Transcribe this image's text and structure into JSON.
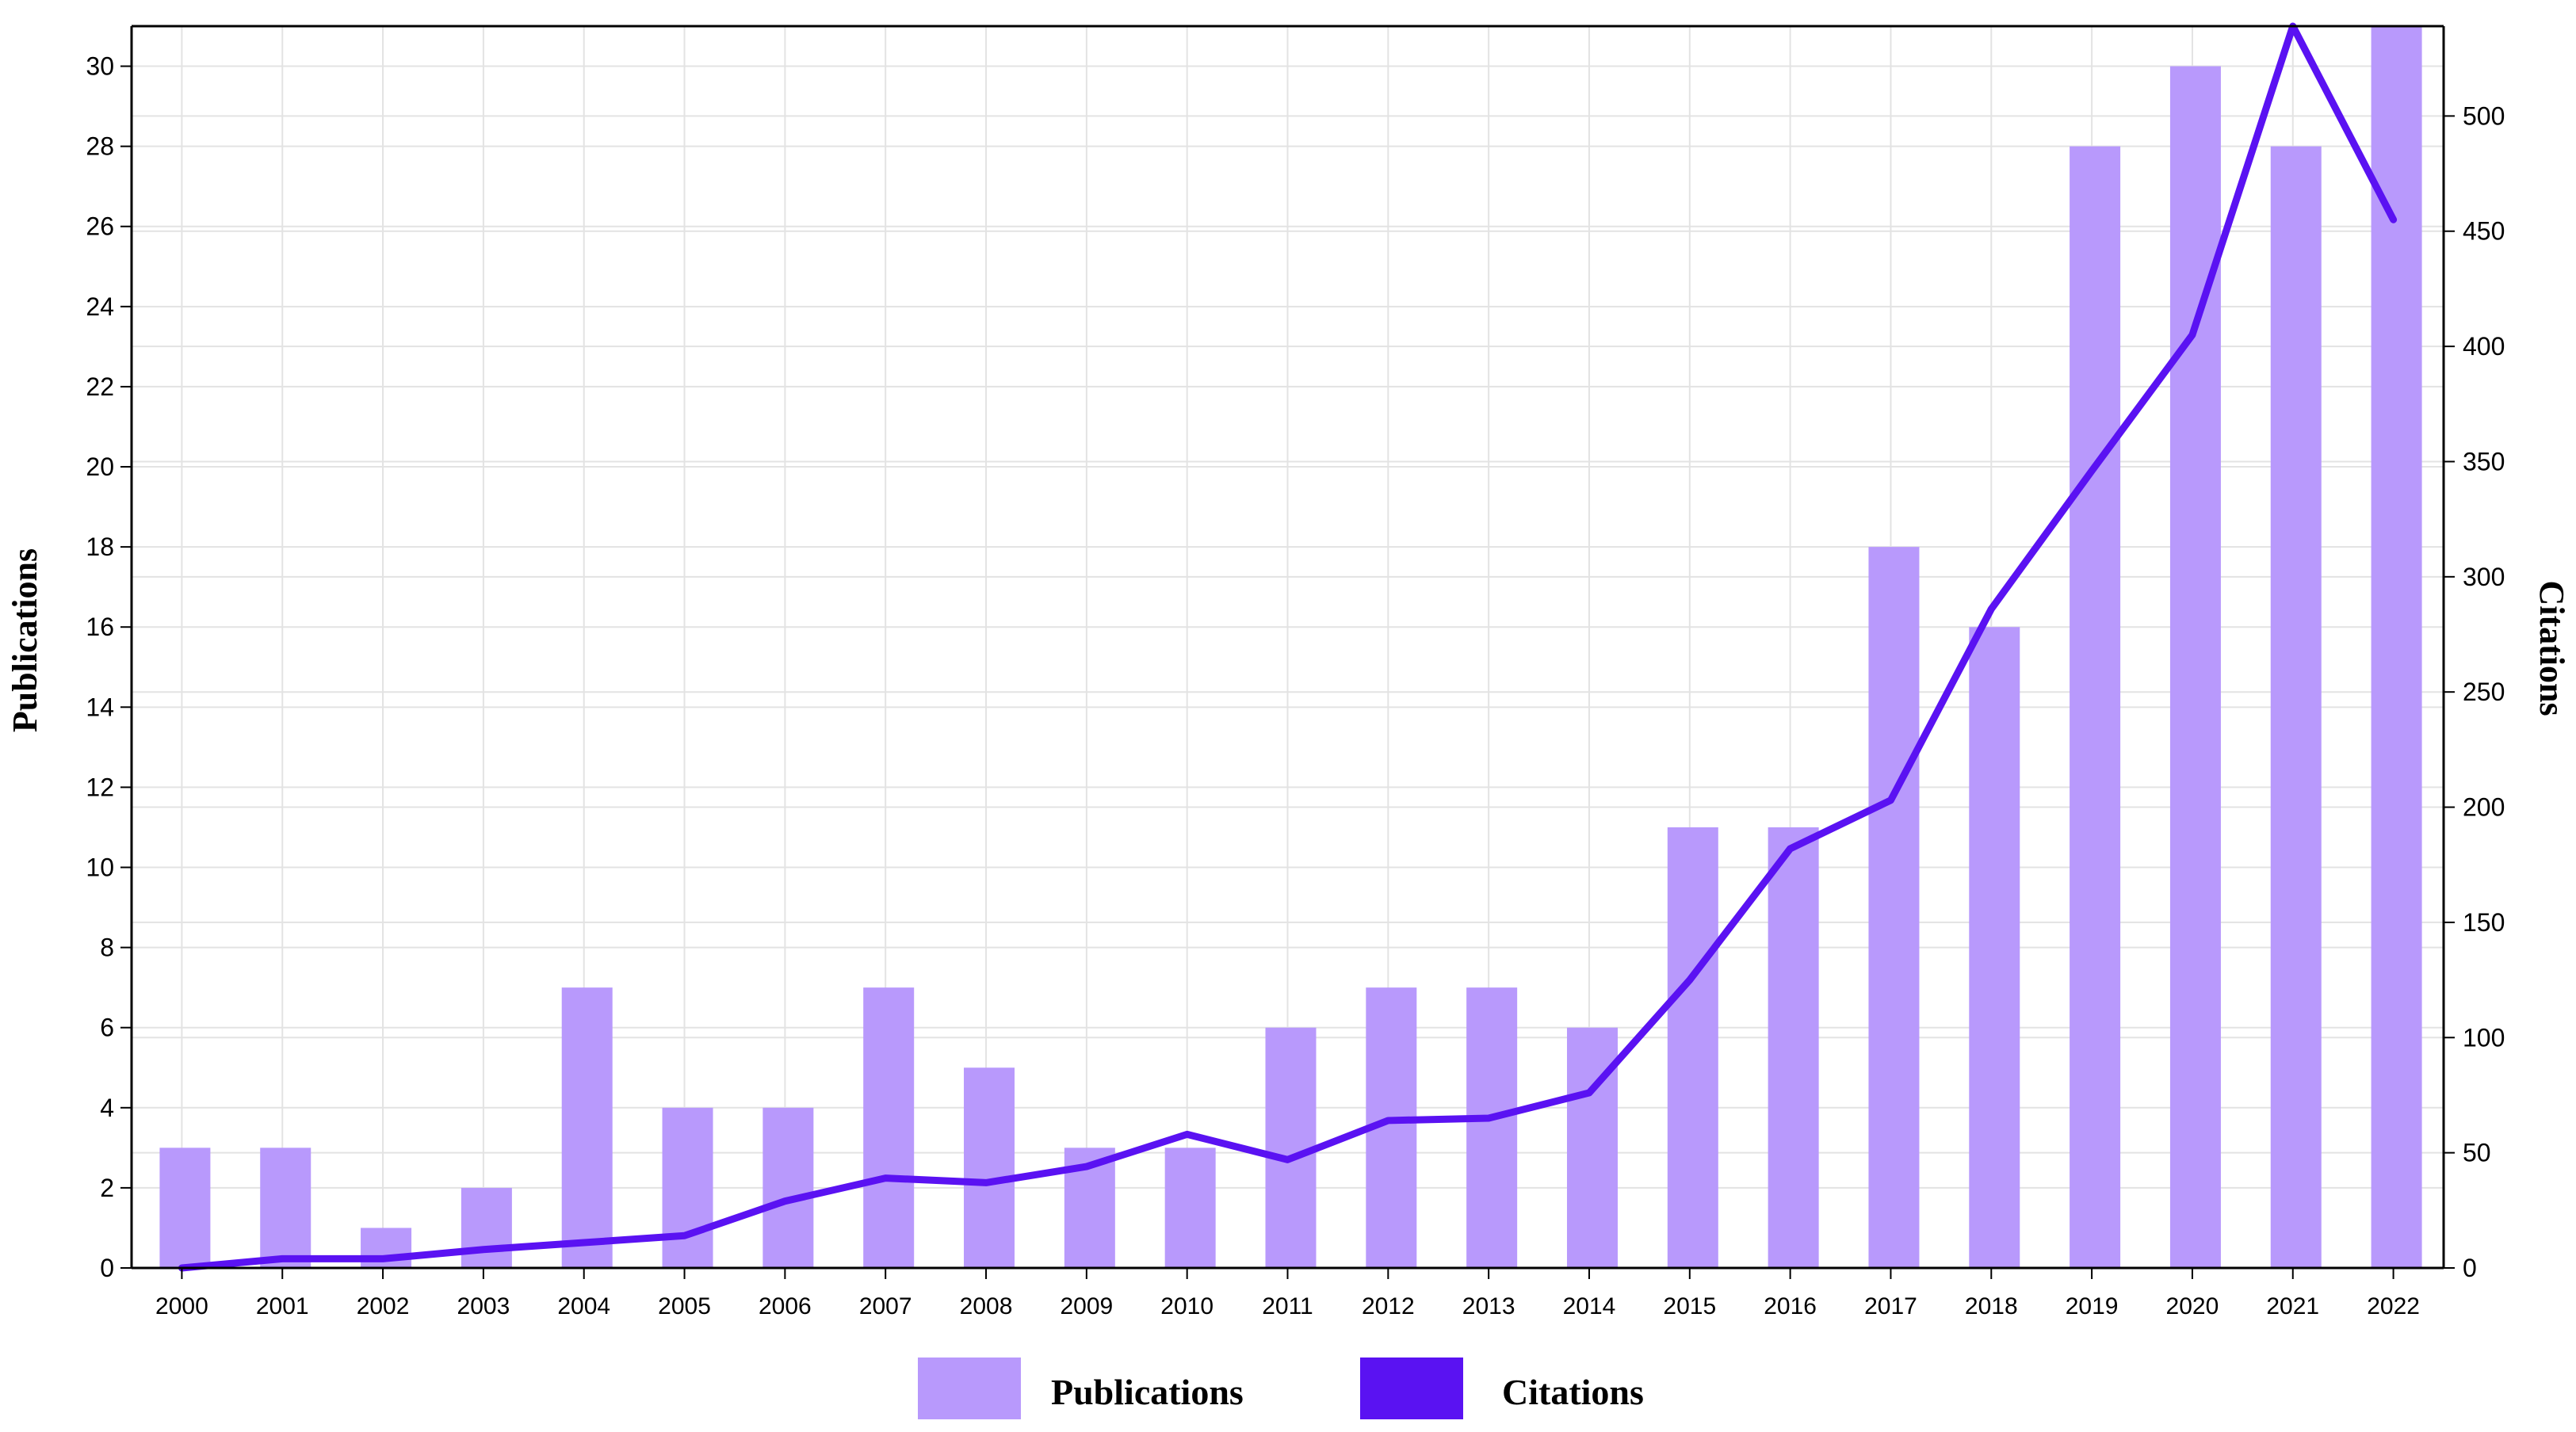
{
  "chart_data": {
    "type": "bar",
    "categories": [
      "2000",
      "2001",
      "2002",
      "2003",
      "2004",
      "2005",
      "2006",
      "2007",
      "2008",
      "2009",
      "2010",
      "2011",
      "2012",
      "2013",
      "2014",
      "2015",
      "2016",
      "2017",
      "2018",
      "2019",
      "2020",
      "2021",
      "2022"
    ],
    "series": [
      {
        "name": "Publications",
        "type": "bar",
        "axis": "left",
        "color": "#b899fc",
        "values": [
          3,
          3,
          1,
          2,
          7,
          4,
          4,
          7,
          5,
          3,
          3,
          6,
          7,
          7,
          6,
          11,
          11,
          18,
          16,
          28,
          30,
          28,
          31
        ]
      },
      {
        "name": "Citations",
        "type": "line",
        "axis": "right",
        "color": "#5a12f2",
        "values": [
          0,
          4,
          4,
          8,
          11,
          14,
          29,
          39,
          37,
          44,
          58,
          47,
          64,
          65,
          76,
          125,
          182,
          203,
          286,
          346,
          405,
          539,
          455
        ]
      }
    ],
    "ylabel": "Publications",
    "y2label": "Citations",
    "ylim": [
      0,
      31
    ],
    "y2lim": [
      0,
      539
    ],
    "yticks": [
      "0",
      "2",
      "4",
      "6",
      "8",
      "10",
      "12",
      "14",
      "16",
      "18",
      "20",
      "22",
      "24",
      "26",
      "28",
      "30"
    ],
    "y2ticks": [
      "0",
      "50",
      "100",
      "150",
      "200",
      "250",
      "300",
      "350",
      "400",
      "450",
      "500"
    ],
    "grid": true,
    "legend_position": "bottom-center"
  }
}
